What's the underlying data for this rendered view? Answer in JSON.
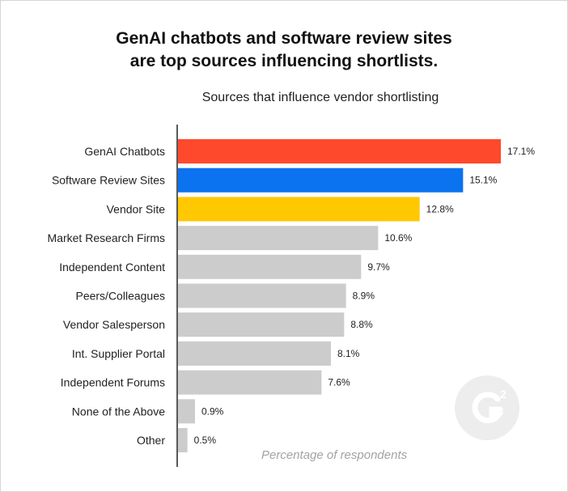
{
  "title_line1": "GenAI chatbots and software review sites",
  "title_line2": "are top sources influencing shortlists.",
  "chart_data": {
    "type": "bar",
    "orientation": "horizontal",
    "title": "GenAI chatbots and software review sites are top sources influencing shortlists.",
    "subtitle": "Sources that influence vendor shortlisting",
    "xlabel": "Percentage of respondents",
    "ylabel": "",
    "categories": [
      "GenAI Chatbots",
      "Software Review Sites",
      "Vendor Site",
      "Market Research Firms",
      "Independent Content",
      "Peers/Colleagues",
      "Vendor Salesperson",
      "Int. Supplier Portal",
      "Independent Forums",
      "None of the Above",
      "Other"
    ],
    "values": [
      17.1,
      15.1,
      12.8,
      10.6,
      9.7,
      8.9,
      8.8,
      8.1,
      7.6,
      0.9,
      0.5
    ],
    "value_labels": [
      "17.1%",
      "15.1%",
      "12.8%",
      "10.6%",
      "9.7%",
      "8.9%",
      "8.8%",
      "8.1%",
      "7.6%",
      "0.9%",
      "0.5%"
    ],
    "colors": [
      "#ff492c",
      "#0b72f0",
      "#ffc800",
      "#cccccc",
      "#cccccc",
      "#cccccc",
      "#cccccc",
      "#cccccc",
      "#cccccc",
      "#cccccc",
      "#cccccc"
    ],
    "xlim": [
      0,
      17.1
    ],
    "grid": false,
    "legend": "none"
  },
  "brand": {
    "logo_icon": "g2-logo-icon",
    "logo_color": "#ededed"
  }
}
